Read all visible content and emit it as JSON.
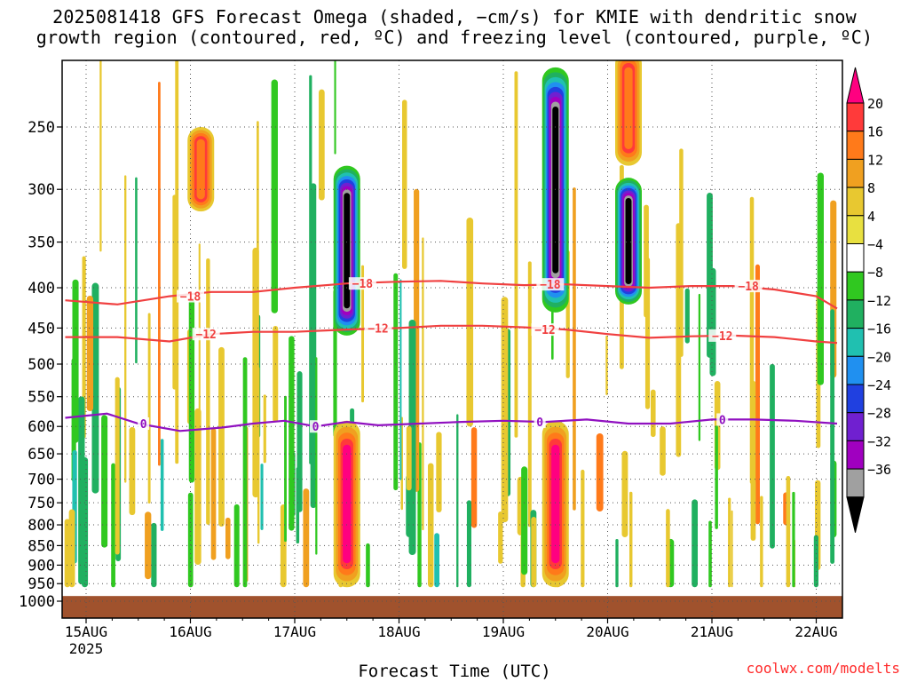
{
  "title": {
    "line1": "2025081418 GFS Forecast Omega (shaded, −cm/s) for KMIE with dendritic snow",
    "line2": "growth region (contoured, red, ºC) and freezing level (contoured, purple, ºC)"
  },
  "xlabel": "Forecast Time (UTC)",
  "credit": "coolwx.com/modelts",
  "chart_data": {
    "type": "heatmap",
    "y_axis": {
      "label": "",
      "scale": "log-pressure",
      "inverted": true,
      "ticks": [
        250,
        300,
        350,
        400,
        450,
        500,
        550,
        600,
        650,
        700,
        750,
        800,
        850,
        900,
        950,
        1000
      ],
      "range": [
        200,
        1000
      ]
    },
    "x_axis": {
      "ticks": [
        "15AUG",
        "16AUG",
        "17AUG",
        "18AUG",
        "19AUG",
        "20AUG",
        "21AUG",
        "22AUG"
      ],
      "year_label": "2025",
      "range_days": [
        -0.2,
        7.2
      ]
    },
    "colorbar": {
      "ticks": [
        "20",
        "16",
        "12",
        "8",
        "4",
        "−4",
        "−8",
        "−12",
        "−16",
        "−20",
        "−24",
        "−28",
        "−32",
        "−36"
      ],
      "colors": [
        "#ff0080",
        "#ff3a3a",
        "#ff7a1a",
        "#f0a020",
        "#e8c830",
        "#e8e040",
        "#ffffff",
        "#30c820",
        "#20b060",
        "#20c0b0",
        "#2090f0",
        "#2040e0",
        "#7020d0",
        "#a000c0",
        "#a0a0a0",
        "#000000"
      ]
    },
    "contours": {
      "dendritic_red": {
        "labels": [
          "−18",
          "−12"
        ],
        "color": "#f04040",
        "minus18_hPa": [
          [
            -0.2,
            415
          ],
          [
            0.3,
            420
          ],
          [
            0.8,
            410
          ],
          [
            1.2,
            405
          ],
          [
            1.6,
            405
          ],
          [
            2.0,
            400
          ],
          [
            2.5,
            395
          ],
          [
            3.0,
            393
          ],
          [
            3.4,
            392
          ],
          [
            3.8,
            395
          ],
          [
            4.2,
            397
          ],
          [
            4.6,
            396
          ],
          [
            5.0,
            398
          ],
          [
            5.4,
            400
          ],
          [
            5.8,
            398
          ],
          [
            6.2,
            398
          ],
          [
            6.6,
            402
          ],
          [
            7.0,
            410
          ],
          [
            7.2,
            425
          ]
        ],
        "minus12_hPa": [
          [
            -0.2,
            462
          ],
          [
            0.3,
            462
          ],
          [
            0.8,
            468
          ],
          [
            1.2,
            458
          ],
          [
            1.6,
            455
          ],
          [
            2.0,
            455
          ],
          [
            2.5,
            452
          ],
          [
            3.0,
            450
          ],
          [
            3.4,
            447
          ],
          [
            3.8,
            447
          ],
          [
            4.2,
            449
          ],
          [
            4.6,
            452
          ],
          [
            5.0,
            458
          ],
          [
            5.4,
            463
          ],
          [
            5.8,
            461
          ],
          [
            6.2,
            460
          ],
          [
            6.6,
            462
          ],
          [
            7.0,
            468
          ],
          [
            7.2,
            470
          ]
        ]
      },
      "freezing_purple": {
        "label": "0",
        "color": "#9010c0",
        "zero_hPa": [
          [
            -0.2,
            585
          ],
          [
            0.2,
            578
          ],
          [
            0.5,
            595
          ],
          [
            0.9,
            608
          ],
          [
            1.3,
            602
          ],
          [
            1.6,
            595
          ],
          [
            1.9,
            590
          ],
          [
            2.2,
            600
          ],
          [
            2.5,
            592
          ],
          [
            2.8,
            598
          ],
          [
            3.2,
            595
          ],
          [
            3.6,
            592
          ],
          [
            4.0,
            590
          ],
          [
            4.4,
            592
          ],
          [
            4.8,
            588
          ],
          [
            5.2,
            595
          ],
          [
            5.6,
            595
          ],
          [
            6.0,
            588
          ],
          [
            6.4,
            588
          ],
          [
            6.8,
            590
          ],
          [
            7.2,
            595
          ]
        ]
      }
    },
    "omega_features": [
      {
        "day": 2.5,
        "p_top": 280,
        "p_bot": 460,
        "value": -40
      },
      {
        "day": 4.5,
        "p_top": 210,
        "p_bot": 430,
        "value": -40
      },
      {
        "day": 5.2,
        "p_top": 290,
        "p_bot": 420,
        "value": -36
      },
      {
        "day": 2.5,
        "p_top": 590,
        "p_bot": 960,
        "value": 20
      },
      {
        "day": 4.5,
        "p_top": 590,
        "p_bot": 960,
        "value": 20
      },
      {
        "day": 5.2,
        "p_top": 200,
        "p_bot": 280,
        "value": 12
      },
      {
        "day": 1.1,
        "p_top": 250,
        "p_bot": 320,
        "value": 12
      }
    ]
  }
}
